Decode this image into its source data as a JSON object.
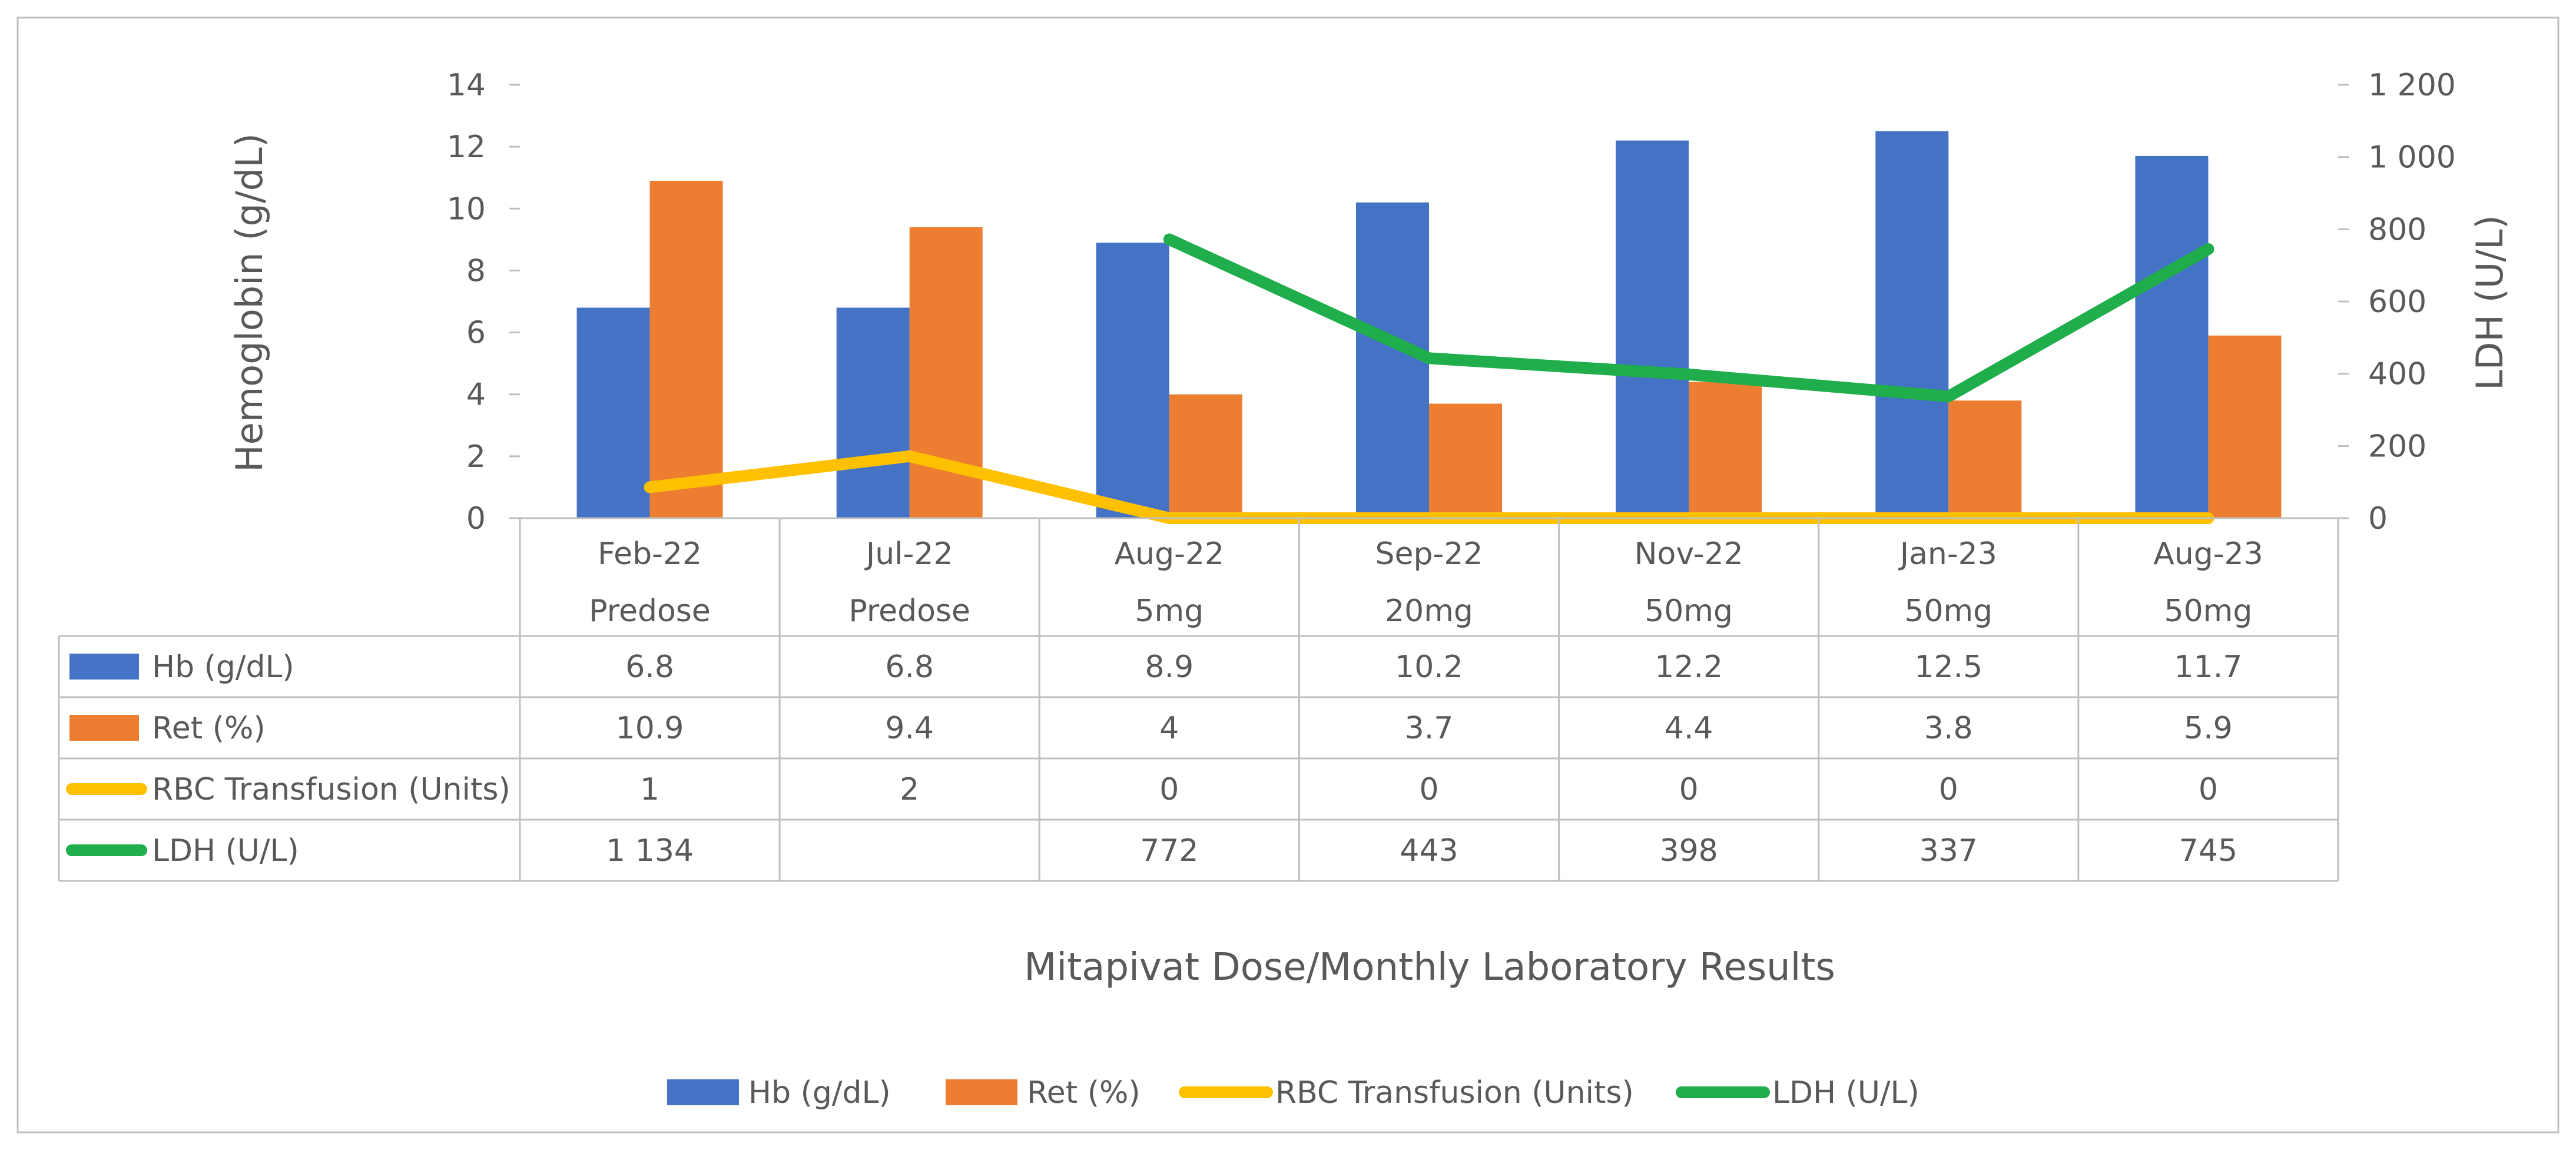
{
  "chart_data": {
    "type": "bar",
    "title": "",
    "xlabel": "Mitapivat Dose/Monthly Laboratory Results",
    "ylabel": "Hemoglobin (g/dL)",
    "ylabel_right": "LDH (U/L)",
    "ylim": [
      0,
      14
    ],
    "y_ticks": [
      "0",
      "2",
      "4",
      "6",
      "8",
      "10",
      "12",
      "14"
    ],
    "y2lim": [
      0,
      1200
    ],
    "y2_ticks": [
      "0",
      "200",
      "400",
      "600",
      "800",
      "1 000",
      "1 200"
    ],
    "grid": false,
    "legend_position": "bottom",
    "categories": [
      {
        "date": "Feb-22",
        "dose": "Predose"
      },
      {
        "date": "Jul-22",
        "dose": "Predose"
      },
      {
        "date": "Aug-22",
        "dose": "5mg"
      },
      {
        "date": "Sep-22",
        "dose": "20mg"
      },
      {
        "date": "Nov-22",
        "dose": "50mg"
      },
      {
        "date": "Jan-23",
        "dose": "50mg"
      },
      {
        "date": "Aug-23",
        "dose": "50mg"
      }
    ],
    "series": [
      {
        "name": "Hb (g/dL)",
        "kind": "bar",
        "axis": "left",
        "color": "#4472C4",
        "values": [
          6.8,
          6.8,
          8.9,
          10.2,
          12.2,
          12.5,
          11.7
        ],
        "labels": [
          "6.8",
          "6.8",
          "8.9",
          "10.2",
          "12.2",
          "12.5",
          "11.7"
        ]
      },
      {
        "name": "Ret (%)",
        "kind": "bar",
        "axis": "left",
        "color": "#ED7D31",
        "values": [
          10.9,
          9.4,
          4,
          3.7,
          4.4,
          3.8,
          5.9
        ],
        "labels": [
          "10.9",
          "9.4",
          "4",
          "3.7",
          "4.4",
          "3.8",
          "5.9"
        ]
      },
      {
        "name": "RBC Transfusion (Units)",
        "kind": "line",
        "axis": "left",
        "color": "#FFC000",
        "values": [
          1,
          2,
          0,
          0,
          0,
          0,
          0
        ],
        "labels": [
          "1",
          "2",
          "0",
          "0",
          "0",
          "0",
          "0"
        ]
      },
      {
        "name": "LDH (U/L)",
        "kind": "line",
        "axis": "right",
        "color": "#1FAE4B",
        "values": [
          1134,
          null,
          772,
          443,
          398,
          337,
          745
        ],
        "labels": [
          "1 134",
          "",
          "772",
          "443",
          "398",
          "337",
          "745"
        ]
      }
    ]
  }
}
